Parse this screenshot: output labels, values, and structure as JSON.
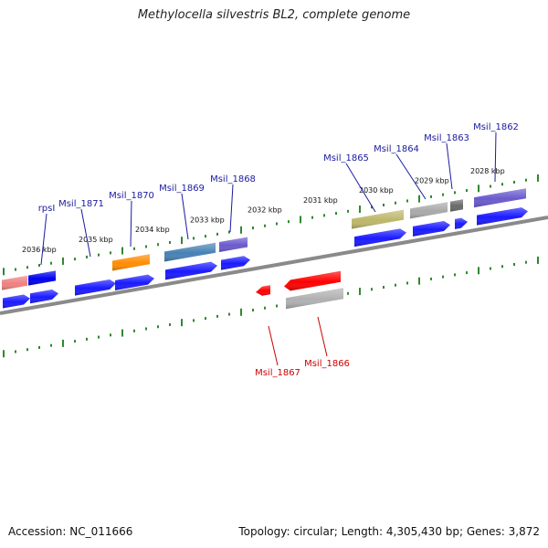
{
  "title": "Methylocella silvestris BL2, complete genome",
  "footer": {
    "accession": "Accession: NC_011666",
    "topology": "Topology: circular; Length: 4,305,430 bp; Genes: 3,872"
  },
  "colors": {
    "backbone": "#808080",
    "cds": "#1a1aff",
    "forward_label": "#1a1aa0",
    "reverse_label": "#cc0000",
    "tick": "#1a7a1a"
  },
  "scale_labels": [
    "2036 kbp",
    "2035 kbp",
    "2034 kbp",
    "2033 kbp",
    "2032 kbp",
    "2031 kbp",
    "2030 kbp",
    "2029 kbp",
    "2028 kbp"
  ],
  "forward_genes": [
    {
      "name": "rpsI",
      "color": "#f08080"
    },
    {
      "name": "Msil_1871",
      "color": "#0000ee"
    },
    {
      "name": "Msil_1870",
      "color": "#ff8c00"
    },
    {
      "name": "Msil_1869",
      "color": "#4682b4"
    },
    {
      "name": "Msil_1868",
      "color": "#6a5acd"
    },
    {
      "name": "Msil_1865",
      "color": "#bdb76b"
    },
    {
      "name": "Msil_1864",
      "color": "#a9a9a9"
    },
    {
      "name": "Msil_1863",
      "color": "#696969"
    },
    {
      "name": "Msil_1862",
      "color": "#6a5acd"
    }
  ],
  "reverse_genes": [
    {
      "name": "Msil_1867",
      "color": "#ff0000"
    },
    {
      "name": "Msil_1866",
      "color": "#ff0000"
    }
  ]
}
